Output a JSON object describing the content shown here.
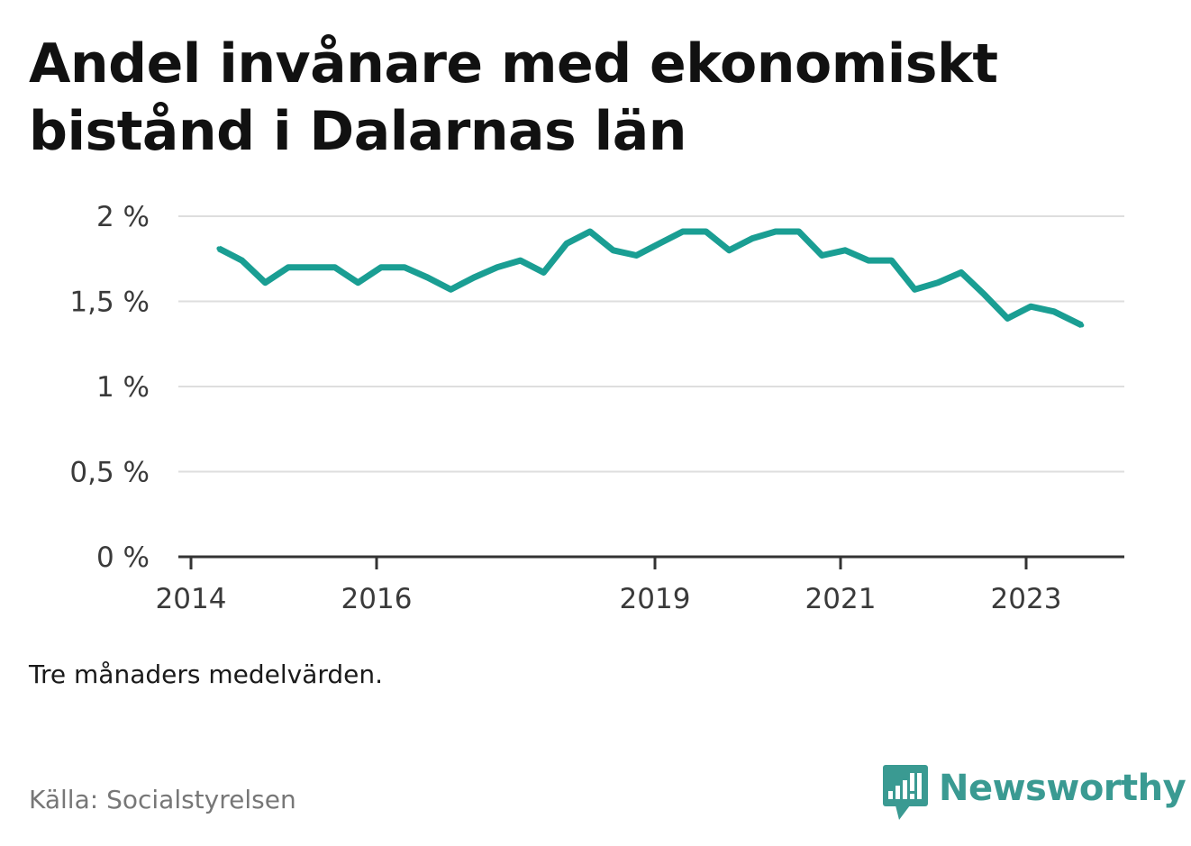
{
  "title": "Andel invånare med ekonomiskt bistånd i Dalarnas län",
  "note": "Tre månaders medelvärden.",
  "source": "Källa: Socialstyrelsen",
  "brand": {
    "name": "Newsworthy",
    "icon": "newsworthy-logo-icon",
    "color": "#3a9a92"
  },
  "colors": {
    "line": "#1a9e93",
    "grid": "#dedede",
    "axis": "#333333"
  },
  "chart_data": {
    "type": "line",
    "title": "Andel invånare med ekonomiskt bistånd i Dalarnas län",
    "xlabel": "",
    "ylabel": "",
    "ylim": [
      0,
      2
    ],
    "yticks": [
      0,
      0.5,
      1,
      1.5,
      2
    ],
    "ytick_labels": [
      "0 %",
      "0,5 %",
      "1 %",
      "1,5 %",
      "2 %"
    ],
    "xticks": [
      "2014",
      "2016",
      "2019",
      "2021",
      "2023"
    ],
    "xtick_positions": [
      2014.0,
      2016.0,
      2019.0,
      2021.0,
      2023.0
    ],
    "xlim": [
      2014.0,
      2024.0
    ],
    "grid": true,
    "series": [
      {
        "values": [
          {
            "x": 2014.3,
            "y": 1.81
          },
          {
            "x": 2014.55,
            "y": 1.74
          },
          {
            "x": 2014.8,
            "y": 1.61
          },
          {
            "x": 2015.05,
            "y": 1.7
          },
          {
            "x": 2015.3,
            "y": 1.7
          },
          {
            "x": 2015.55,
            "y": 1.7
          },
          {
            "x": 2015.8,
            "y": 1.61
          },
          {
            "x": 2016.05,
            "y": 1.7
          },
          {
            "x": 2016.3,
            "y": 1.7
          },
          {
            "x": 2016.55,
            "y": 1.64
          },
          {
            "x": 2016.8,
            "y": 1.57
          },
          {
            "x": 2017.05,
            "y": 1.64
          },
          {
            "x": 2017.3,
            "y": 1.7
          },
          {
            "x": 2017.55,
            "y": 1.74
          },
          {
            "x": 2017.8,
            "y": 1.67
          },
          {
            "x": 2018.05,
            "y": 1.84
          },
          {
            "x": 2018.3,
            "y": 1.91
          },
          {
            "x": 2018.55,
            "y": 1.8
          },
          {
            "x": 2018.8,
            "y": 1.77
          },
          {
            "x": 2019.05,
            "y": 1.84
          },
          {
            "x": 2019.3,
            "y": 1.91
          },
          {
            "x": 2019.55,
            "y": 1.91
          },
          {
            "x": 2019.8,
            "y": 1.8
          },
          {
            "x": 2020.05,
            "y": 1.87
          },
          {
            "x": 2020.3,
            "y": 1.91
          },
          {
            "x": 2020.55,
            "y": 1.91
          },
          {
            "x": 2020.8,
            "y": 1.77
          },
          {
            "x": 2021.05,
            "y": 1.8
          },
          {
            "x": 2021.3,
            "y": 1.74
          },
          {
            "x": 2021.55,
            "y": 1.74
          },
          {
            "x": 2021.8,
            "y": 1.57
          },
          {
            "x": 2022.05,
            "y": 1.61
          },
          {
            "x": 2022.3,
            "y": 1.67
          },
          {
            "x": 2022.55,
            "y": 1.54
          },
          {
            "x": 2022.8,
            "y": 1.4
          },
          {
            "x": 2023.05,
            "y": 1.47
          },
          {
            "x": 2023.3,
            "y": 1.44
          },
          {
            "x": 2023.6,
            "y": 1.36
          }
        ]
      }
    ]
  }
}
